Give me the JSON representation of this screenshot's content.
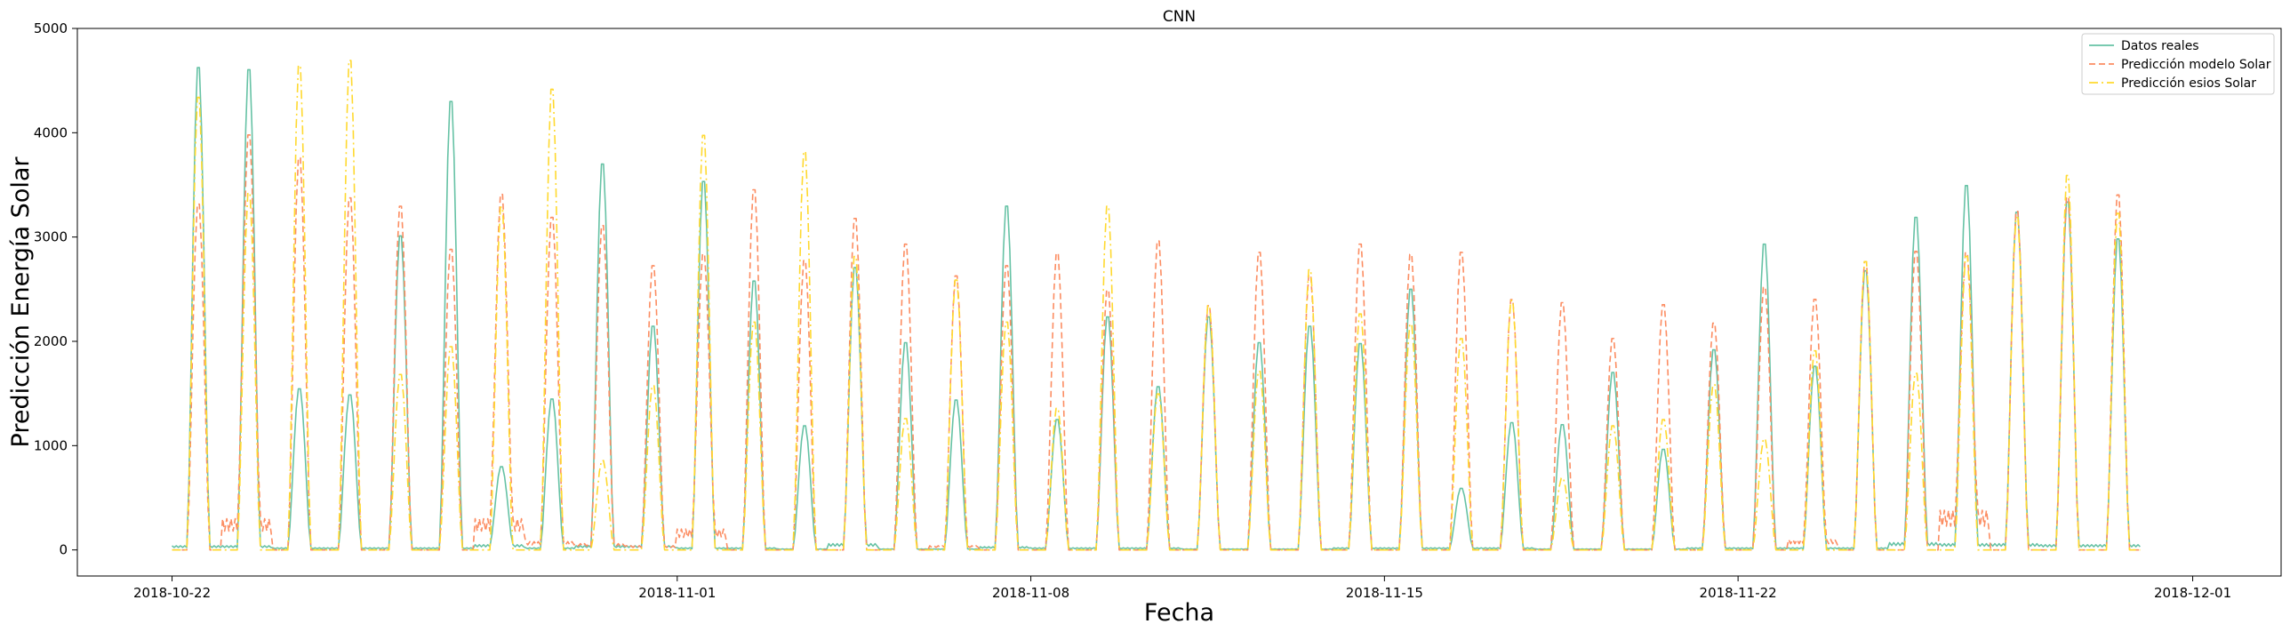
{
  "chart_data": {
    "type": "line",
    "title": "CNN",
    "xlabel": "Fecha",
    "ylabel": "Predicción Energía Solar",
    "x_range": [
      "2018-10-20T03:00",
      "2018-12-02T18:00"
    ],
    "ylim": [
      -250,
      5000
    ],
    "x_ticks": [
      "2018-10-22",
      "2018-11-01",
      "2018-11-08",
      "2018-11-15",
      "2018-11-22",
      "2018-12-01"
    ],
    "y_ticks": [
      0,
      1000,
      2000,
      3000,
      4000,
      5000
    ],
    "grid": false,
    "legend_position": "top-right",
    "series_time_range": [
      "2018-10-22T00:00",
      "2018-11-30T23:00"
    ],
    "series": [
      {
        "name": "Datos reales",
        "color": "#66c2a5",
        "dash": "solid",
        "daily_peaks": [
          4700,
          4680,
          1570,
          1510,
          3060,
          4370,
          810,
          1470,
          3760,
          2180,
          3590,
          2620,
          1210,
          2750,
          2020,
          1460,
          3350,
          1270,
          2270,
          1590,
          2270,
          2020,
          2180,
          2010,
          2540,
          600,
          1240,
          1220,
          1730,
          980,
          1950,
          2980,
          1790,
          2720,
          3240,
          3550,
          3290,
          3390,
          3030
        ],
        "daily_baseline": [
          40,
          40,
          20,
          20,
          20,
          20,
          50,
          20,
          40,
          40,
          20,
          20,
          10,
          60,
          10,
          10,
          30,
          20,
          20,
          20,
          10,
          10,
          10,
          20,
          20,
          20,
          20,
          10,
          10,
          10,
          20,
          20,
          20,
          20,
          70,
          60,
          60,
          50,
          50
        ]
      },
      {
        "name": "Predicción modelo Solar",
        "color": "#fc8d62",
        "dash": "dashed",
        "daily_peaks": [
          3370,
          4040,
          3820,
          3430,
          3350,
          2930,
          3460,
          3240,
          3160,
          2770,
          2880,
          3510,
          2820,
          3230,
          2980,
          2670,
          2770,
          2890,
          2530,
          3010,
          2380,
          2900,
          2680,
          2980,
          2880,
          2900,
          2440,
          2410,
          2060,
          2390,
          2210,
          2560,
          2440,
          2810,
          2910,
          2890,
          3300,
          3440,
          3460
        ],
        "daily_baseline": [
          0,
          300,
          0,
          0,
          0,
          0,
          300,
          80,
          60,
          40,
          200,
          0,
          0,
          0,
          0,
          40,
          0,
          0,
          0,
          0,
          0,
          0,
          0,
          0,
          0,
          0,
          0,
          0,
          0,
          0,
          0,
          0,
          100,
          0,
          0,
          380,
          0,
          0,
          0
        ]
      },
      {
        "name": "Predicción esios Solar",
        "color": "#ffd92f",
        "dash": "dashdot",
        "daily_peaks": [
          4410,
          3480,
          4720,
          4770,
          1710,
          1980,
          3340,
          4490,
          870,
          1600,
          4040,
          2220,
          3880,
          2860,
          1280,
          2630,
          2220,
          1380,
          3350,
          1520,
          2380,
          1740,
          2730,
          2300,
          2200,
          2060,
          2430,
          700,
          1210,
          1270,
          1610,
          1080,
          1940,
          2810,
          1720,
          2860,
          3240,
          3650,
          3280
        ],
        "daily_baseline": [
          0,
          0,
          0,
          0,
          0,
          0,
          0,
          0,
          0,
          0,
          0,
          0,
          0,
          0,
          0,
          0,
          0,
          0,
          0,
          0,
          0,
          0,
          0,
          0,
          0,
          0,
          0,
          0,
          0,
          0,
          0,
          0,
          0,
          0,
          0,
          0,
          0,
          0,
          0
        ]
      }
    ]
  }
}
